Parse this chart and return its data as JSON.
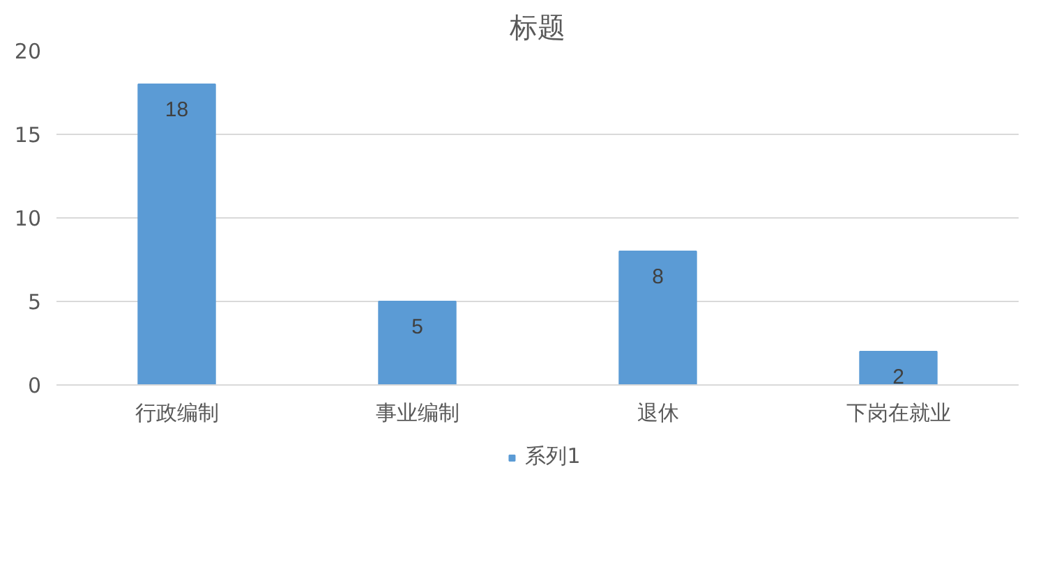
{
  "chart_data": {
    "type": "bar",
    "title": "标题",
    "categories": [
      "行政编制",
      "事业编制",
      "退休",
      "下岗在就业"
    ],
    "series": [
      {
        "name": "系列1",
        "color": "#5b9bd5",
        "values": [
          18,
          5,
          8,
          2
        ]
      }
    ],
    "ylim": [
      0,
      20
    ],
    "yticks": [
      0,
      5,
      10,
      15,
      20
    ],
    "grid": "y",
    "legend": "bottom",
    "data_labels": true
  }
}
